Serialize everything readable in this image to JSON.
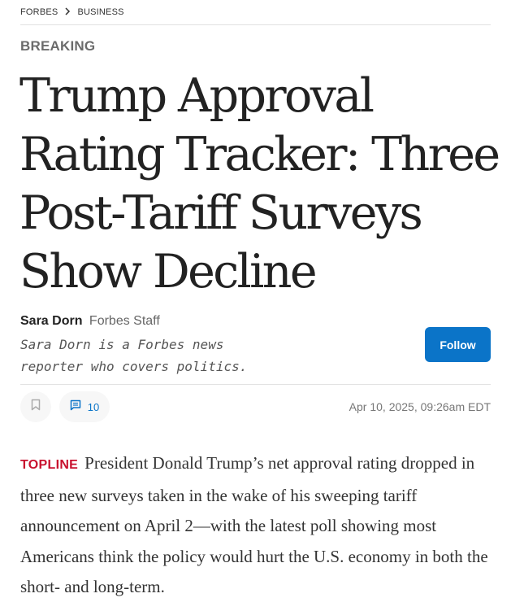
{
  "breadcrumb": {
    "items": [
      "FORBES",
      "BUSINESS"
    ]
  },
  "article": {
    "kicker": "BREAKING",
    "headline": "Trump Approval Rating Tracker: Three Post-Tariff Surveys Show Decline",
    "author": {
      "name": "Sara Dorn",
      "role": "Forbes Staff",
      "bio": "Sara Dorn is a Forbes news reporter who covers politics."
    },
    "follow_label": "Follow",
    "comment_count": "10",
    "timestamp": "Apr 10, 2025, 09:26am EDT",
    "topline_label": "TOPLINE",
    "topline_text": "President Donald Trump’s net approval rating dropped in three new surveys taken in the wake of his sweeping tariff announcement on April 2—with the latest poll showing most Americans think the policy would hurt the U.S. economy in both the short- and long-term."
  },
  "colors": {
    "accent_blue": "#0b74c8",
    "topline_red": "#c8102e",
    "kicker_gray": "#6b6b6b"
  },
  "icons": {
    "breadcrumb_separator": "chevron-right-icon",
    "bookmark": "bookmark-icon",
    "comments": "comment-icon"
  }
}
